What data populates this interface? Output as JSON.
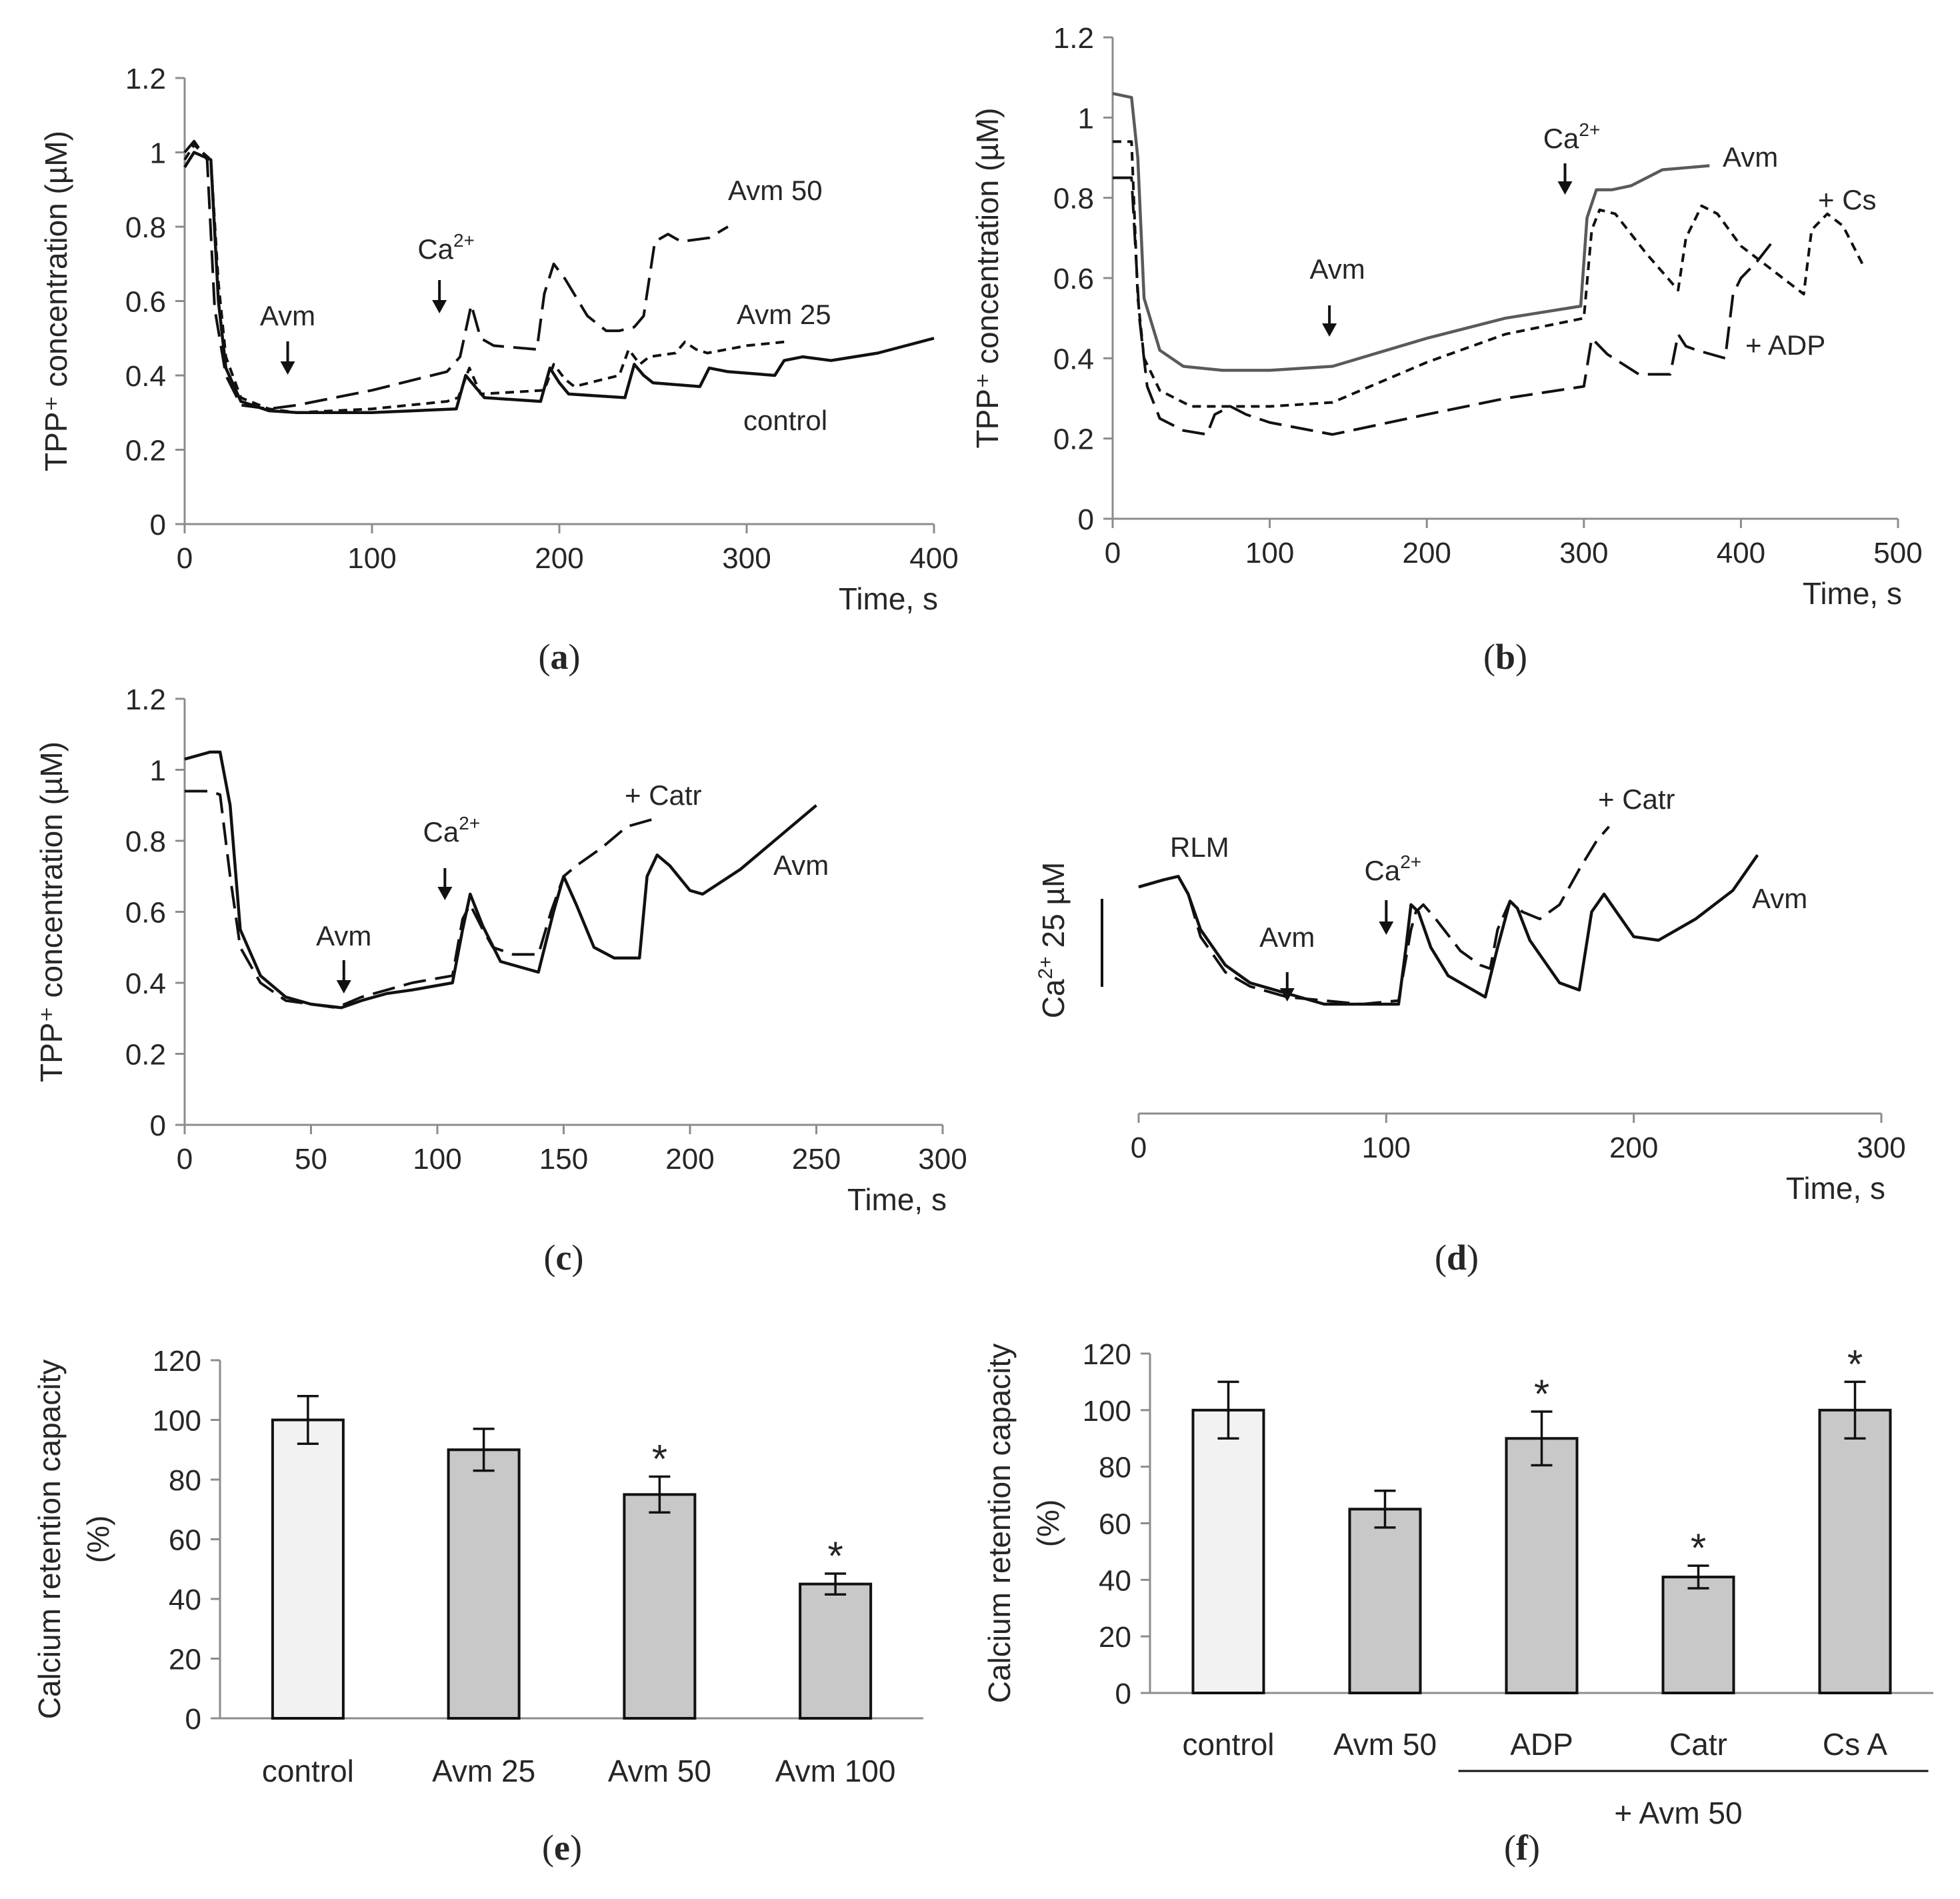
{
  "chart_data": [
    {
      "panel": "a",
      "caption": {
        "open": "(",
        "letter": "a",
        "close": ")"
      },
      "type": "line",
      "xlabel": "Time, s",
      "ylabel": "TPP⁺ concentration (µM)",
      "xlim": [
        0,
        400
      ],
      "ylim": [
        0,
        1.2
      ],
      "xticks": [
        0,
        100,
        200,
        300,
        400
      ],
      "yticks": [
        0,
        0.2,
        0.4,
        0.6,
        0.8,
        1,
        1.2
      ],
      "ytick_labels": [
        "0",
        "0.2",
        "0.4",
        "0.6",
        "0.8",
        "1",
        "1.2"
      ],
      "series": [
        {
          "name": "control",
          "style": "solid",
          "x": [
            0,
            5,
            14,
            18,
            22,
            30,
            45,
            60,
            100,
            145,
            150,
            155,
            160,
            190,
            195,
            200,
            205,
            235,
            240,
            245,
            250,
            275,
            280,
            290,
            315,
            320,
            330,
            345,
            370,
            400
          ],
          "y": [
            0.96,
            1.0,
            0.98,
            0.6,
            0.42,
            0.33,
            0.305,
            0.3,
            0.3,
            0.31,
            0.4,
            0.37,
            0.34,
            0.33,
            0.42,
            0.38,
            0.35,
            0.34,
            0.43,
            0.4,
            0.38,
            0.37,
            0.42,
            0.41,
            0.4,
            0.44,
            0.45,
            0.44,
            0.46,
            0.5
          ]
        },
        {
          "name": "Avm 25",
          "style": "short-dash",
          "x": [
            0,
            5,
            14,
            18,
            22,
            30,
            45,
            60,
            100,
            140,
            146,
            152,
            158,
            192,
            197,
            203,
            208,
            232,
            237,
            243,
            248,
            262,
            267,
            273,
            279,
            300,
            320
          ],
          "y": [
            0.98,
            1.02,
            0.98,
            0.65,
            0.45,
            0.34,
            0.31,
            0.3,
            0.31,
            0.33,
            0.34,
            0.42,
            0.35,
            0.36,
            0.43,
            0.39,
            0.37,
            0.4,
            0.47,
            0.43,
            0.45,
            0.46,
            0.49,
            0.47,
            0.46,
            0.48,
            0.49
          ]
        },
        {
          "name": "Avm 50",
          "style": "long-dash",
          "x": [
            0,
            5,
            12,
            16,
            22,
            30,
            45,
            60,
            100,
            140,
            147,
            153,
            158,
            165,
            188,
            192,
            197,
            203,
            215,
            225,
            232,
            240,
            245,
            251,
            258,
            265,
            280,
            290
          ],
          "y": [
            1.0,
            1.03,
            0.98,
            0.58,
            0.4,
            0.32,
            0.31,
            0.32,
            0.36,
            0.41,
            0.45,
            0.59,
            0.5,
            0.48,
            0.47,
            0.62,
            0.7,
            0.66,
            0.56,
            0.52,
            0.52,
            0.53,
            0.56,
            0.76,
            0.78,
            0.76,
            0.77,
            0.8
          ]
        }
      ],
      "labels": {
        "avm50": "Avm 50",
        "avm25": "Avm 25",
        "control": "control"
      },
      "annotations": [
        {
          "text": "Avm",
          "x": 55
        }
      ],
      "ca_annotation": {
        "x": 136,
        "base": "Ca",
        "sup": "2+"
      }
    },
    {
      "panel": "b",
      "caption": {
        "open": "(",
        "letter": "b",
        "close": ")"
      },
      "type": "line",
      "xlabel": "Time, s",
      "ylabel": "TPP⁺ concentration (µM)",
      "xlim": [
        0,
        500
      ],
      "ylim": [
        0,
        1.2
      ],
      "xticks": [
        0,
        100,
        200,
        300,
        400,
        500
      ],
      "yticks": [
        0,
        0.2,
        0.4,
        0.6,
        0.8,
        1,
        1.2
      ],
      "ytick_labels": [
        "0",
        "0.2",
        "0.4",
        "0.6",
        "0.8",
        "1",
        "1.2"
      ],
      "series": [
        {
          "name": "Avm",
          "style": "solid-gray",
          "x": [
            0,
            12,
            16,
            20,
            30,
            45,
            70,
            100,
            140,
            200,
            250,
            298,
            302,
            308,
            318,
            330,
            350,
            380
          ],
          "y": [
            1.06,
            1.05,
            0.9,
            0.55,
            0.42,
            0.38,
            0.37,
            0.37,
            0.38,
            0.45,
            0.5,
            0.53,
            0.75,
            0.82,
            0.82,
            0.83,
            0.87,
            0.88
          ]
        },
        {
          "name": "+ Cs",
          "style": "short-dash",
          "x": [
            0,
            12,
            16,
            20,
            30,
            50,
            100,
            140,
            200,
            250,
            300,
            305,
            310,
            320,
            340,
            360,
            365,
            375,
            385,
            400,
            420,
            440,
            445,
            455,
            465,
            478
          ],
          "y": [
            0.94,
            0.94,
            0.55,
            0.4,
            0.32,
            0.28,
            0.28,
            0.29,
            0.39,
            0.46,
            0.5,
            0.72,
            0.77,
            0.76,
            0.66,
            0.57,
            0.7,
            0.78,
            0.76,
            0.68,
            0.62,
            0.56,
            0.72,
            0.76,
            0.73,
            0.63
          ]
        },
        {
          "name": "+ ADP",
          "style": "long-dash",
          "x": [
            0,
            12,
            17,
            22,
            30,
            45,
            60,
            65,
            75,
            85,
            100,
            140,
            200,
            250,
            300,
            305,
            310,
            315,
            335,
            355,
            360,
            365,
            372,
            390,
            395,
            400,
            410,
            422
          ],
          "y": [
            0.85,
            0.85,
            0.5,
            0.33,
            0.25,
            0.22,
            0.21,
            0.26,
            0.28,
            0.26,
            0.24,
            0.21,
            0.26,
            0.3,
            0.33,
            0.45,
            0.43,
            0.41,
            0.36,
            0.36,
            0.46,
            0.43,
            0.42,
            0.4,
            0.56,
            0.6,
            0.64,
            0.7
          ]
        }
      ],
      "labels": {
        "avm": "Avm",
        "cs": "+ Cs",
        "adp": "+ ADP"
      },
      "annotations": [
        {
          "text": "Avm",
          "x": 138
        }
      ],
      "ca_annotation": {
        "x": 288,
        "base": "Ca",
        "sup": "2+"
      }
    },
    {
      "panel": "c",
      "caption": {
        "open": "(",
        "letter": "c",
        "close": ")"
      },
      "type": "line",
      "xlabel": "Time, s",
      "ylabel": "TPP⁺ concentration (µM)",
      "xlim": [
        0,
        300
      ],
      "ylim": [
        0,
        1.2
      ],
      "xticks": [
        0,
        50,
        100,
        150,
        200,
        250,
        300
      ],
      "yticks": [
        0,
        0.2,
        0.4,
        0.6,
        0.8,
        1,
        1.2
      ],
      "ytick_labels": [
        "0",
        "0.2",
        "0.4",
        "0.6",
        "0.8",
        "1",
        "1.2"
      ],
      "series": [
        {
          "name": "Avm",
          "style": "solid",
          "x": [
            0,
            10,
            14,
            18,
            22,
            30,
            40,
            50,
            62,
            70,
            80,
            90,
            106,
            110,
            113,
            118,
            125,
            140,
            146,
            150,
            155,
            162,
            170,
            180,
            183,
            187,
            192,
            200,
            205,
            220,
            235,
            250
          ],
          "y": [
            1.03,
            1.05,
            1.05,
            0.9,
            0.55,
            0.42,
            0.36,
            0.34,
            0.33,
            0.35,
            0.37,
            0.38,
            0.4,
            0.55,
            0.65,
            0.56,
            0.46,
            0.43,
            0.6,
            0.7,
            0.62,
            0.5,
            0.47,
            0.47,
            0.7,
            0.76,
            0.73,
            0.66,
            0.65,
            0.72,
            0.81,
            0.9
          ]
        },
        {
          "name": "+ Catr",
          "style": "long-dash",
          "x": [
            0,
            10,
            14,
            18,
            22,
            30,
            40,
            50,
            60,
            70,
            80,
            90,
            106,
            110,
            113,
            118,
            122,
            130,
            140,
            145,
            150,
            155,
            165,
            175,
            185
          ],
          "y": [
            0.94,
            0.94,
            0.93,
            0.7,
            0.5,
            0.4,
            0.35,
            0.34,
            0.33,
            0.36,
            0.38,
            0.4,
            0.42,
            0.58,
            0.62,
            0.55,
            0.5,
            0.48,
            0.48,
            0.6,
            0.7,
            0.73,
            0.78,
            0.84,
            0.86
          ]
        }
      ],
      "labels": {
        "catr": "+ Catr",
        "avm": "Avm"
      },
      "annotations": [
        {
          "text": "Avm",
          "x": 63
        }
      ],
      "ca_annotation": {
        "x": 103,
        "base": "Ca",
        "sup": "2+"
      }
    },
    {
      "panel": "d",
      "caption": {
        "open": "(",
        "letter": "d",
        "close": ")"
      },
      "type": "line",
      "xlabel": "Time, s",
      "xlim": [
        0,
        300
      ],
      "ylim": [
        0,
        1.2
      ],
      "xticks": [
        0,
        100,
        200,
        300
      ],
      "scale_bar": {
        "base": "Ca",
        "sup": "2+",
        "value": " 25 µM"
      },
      "series": [
        {
          "name": "Avm",
          "style": "solid",
          "x": [
            0,
            10,
            16,
            20,
            25,
            35,
            45,
            60,
            75,
            90,
            105,
            108,
            110,
            113,
            118,
            125,
            140,
            145,
            150,
            153,
            158,
            165,
            170,
            178,
            183,
            188,
            195,
            200,
            210,
            225,
            240,
            250
          ],
          "y": [
            0.67,
            0.69,
            0.7,
            0.65,
            0.55,
            0.45,
            0.4,
            0.37,
            0.34,
            0.34,
            0.34,
            0.5,
            0.62,
            0.6,
            0.5,
            0.42,
            0.36,
            0.5,
            0.63,
            0.61,
            0.52,
            0.45,
            0.4,
            0.38,
            0.6,
            0.65,
            0.58,
            0.53,
            0.52,
            0.58,
            0.66,
            0.76
          ]
        },
        {
          "name": "+ Catr",
          "style": "long-dash",
          "x": [
            0,
            10,
            16,
            20,
            25,
            35,
            45,
            60,
            75,
            90,
            105,
            110,
            112,
            115,
            120,
            130,
            138,
            142,
            145,
            150,
            155,
            162,
            170,
            178,
            185,
            190
          ],
          "y": [
            0.67,
            0.69,
            0.7,
            0.65,
            0.53,
            0.43,
            0.39,
            0.36,
            0.35,
            0.34,
            0.35,
            0.55,
            0.6,
            0.62,
            0.58,
            0.49,
            0.45,
            0.44,
            0.55,
            0.63,
            0.6,
            0.58,
            0.62,
            0.72,
            0.8,
            0.84
          ]
        }
      ],
      "labels": {
        "rlm": "RLM",
        "catr": "+ Catr",
        "avm": "Avm"
      },
      "annotations": [
        {
          "text": "Avm",
          "x": 60
        }
      ],
      "ca_annotation": {
        "x": 100,
        "base": "Ca",
        "sup": "2+"
      }
    },
    {
      "panel": "e",
      "caption": {
        "open": "(",
        "letter": "e",
        "close": ")"
      },
      "type": "bar",
      "ylabel_lines": [
        "Calcium retention capacity",
        "(%)"
      ],
      "ylim": [
        0,
        120
      ],
      "yticks": [
        0,
        20,
        40,
        60,
        80,
        100,
        120
      ],
      "categories": [
        "control",
        "Avm 25",
        "Avm 50",
        "Avm 100"
      ],
      "values": [
        100,
        90,
        75,
        45
      ],
      "errors": [
        8,
        7,
        6,
        3.5
      ],
      "colors": [
        "#f2f2f2",
        "#c8c8c8",
        "#c8c8c8",
        "#c8c8c8"
      ],
      "significant": [
        false,
        false,
        true,
        true
      ],
      "sig_marker": "*"
    },
    {
      "panel": "f",
      "caption": {
        "open": "(",
        "letter": "f",
        "close": ")"
      },
      "type": "bar",
      "ylabel_lines": [
        "Calcium retention capacity",
        "(%)"
      ],
      "ylim": [
        0,
        120
      ],
      "yticks": [
        0,
        20,
        40,
        60,
        80,
        100,
        120
      ],
      "categories": [
        "control",
        "Avm 50",
        "ADP",
        "Catr",
        "Cs A"
      ],
      "values": [
        100,
        65,
        90,
        41,
        100
      ],
      "errors": [
        10,
        6.5,
        9.5,
        4,
        10
      ],
      "colors": [
        "#f2f2f2",
        "#c8c8c8",
        "#c8c8c8",
        "#c8c8c8",
        "#c8c8c8"
      ],
      "significant": [
        false,
        false,
        true,
        true,
        true
      ],
      "sig_marker": "*",
      "group_label": "+ Avm 50"
    }
  ]
}
